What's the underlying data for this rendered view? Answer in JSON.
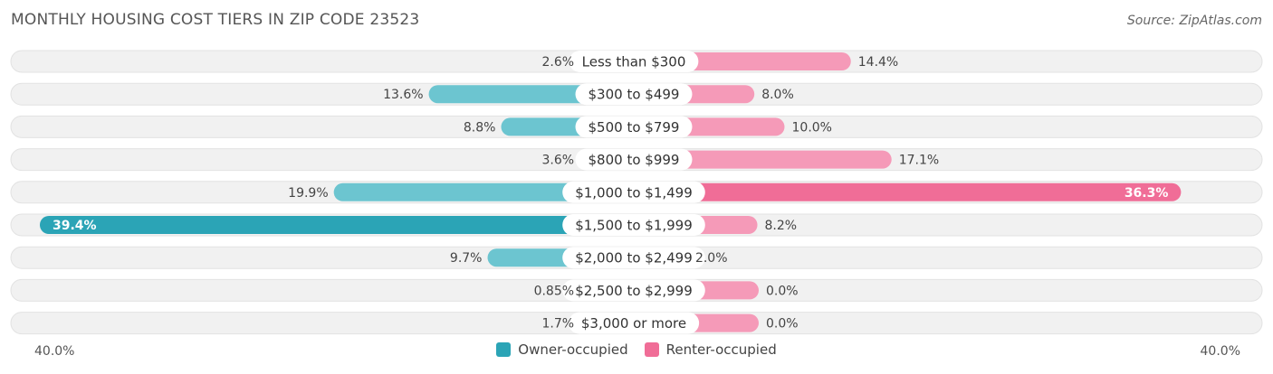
{
  "title": "MONTHLY HOUSING COST TIERS IN ZIP CODE 23523",
  "source": "Source: ZipAtlas.com",
  "colors": {
    "owner": "#6cc5d0",
    "owner_strong": "#2ba4b6",
    "renter": "#f59ab8",
    "renter_strong": "#f06d97",
    "track": "#eeeeee"
  },
  "chart_data": {
    "type": "bar",
    "orientation": "diverging-horizontal",
    "categories": [
      "Less than $300",
      "$300 to $499",
      "$500 to $799",
      "$800 to $999",
      "$1,000 to $1,499",
      "$1,500 to $1,999",
      "$2,000 to $2,499",
      "$2,500 to $2,999",
      "$3,000 or more"
    ],
    "series": [
      {
        "name": "Owner-occupied",
        "values": [
          2.6,
          13.6,
          8.8,
          3.6,
          19.9,
          39.4,
          9.7,
          0.85,
          1.7
        ],
        "labels": [
          "2.6%",
          "13.6%",
          "8.8%",
          "3.6%",
          "19.9%",
          "39.4%",
          "9.7%",
          "0.85%",
          "1.7%"
        ]
      },
      {
        "name": "Renter-occupied",
        "values": [
          14.4,
          8.0,
          10.0,
          17.1,
          36.3,
          8.2,
          2.0,
          0.0,
          0.0
        ],
        "labels": [
          "14.4%",
          "8.0%",
          "10.0%",
          "17.1%",
          "36.3%",
          "8.2%",
          "2.0%",
          "0.0%",
          "0.0%"
        ]
      }
    ],
    "xlim": [
      -40,
      40
    ],
    "axis_left_label": "40.0%",
    "axis_right_label": "40.0%",
    "legend_position": "bottom-center"
  }
}
